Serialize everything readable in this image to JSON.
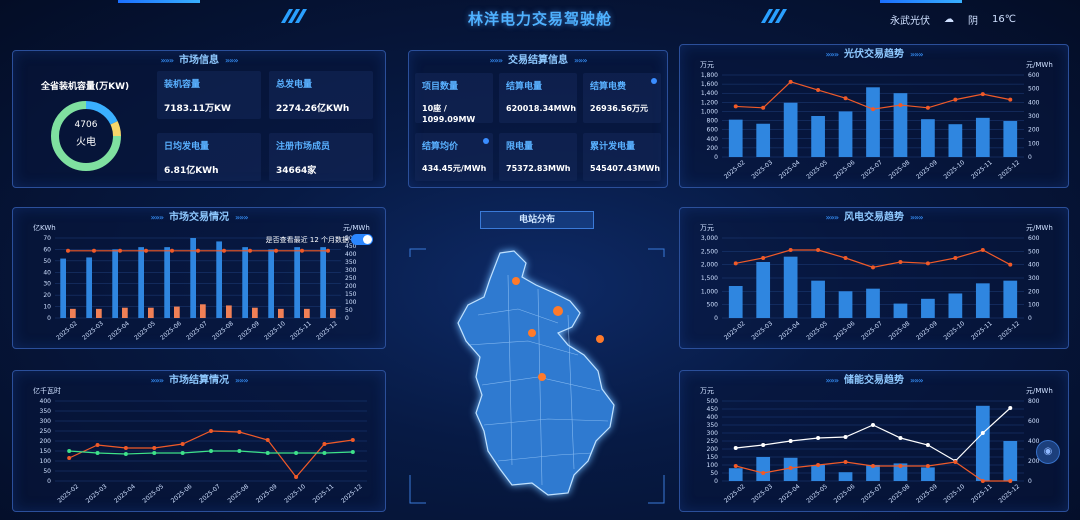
{
  "header": {
    "title": "林洋电力交易驾驶舱",
    "location": "永武光伏",
    "weather_text": "阴",
    "temperature": "16℃"
  },
  "market_info": {
    "title": "市场信息",
    "capacity_label": "全省装机容量(万KW)",
    "donut": {
      "value": "4706",
      "label": "火电",
      "segments": [
        0.18,
        0.07,
        0.75
      ],
      "colors": [
        "#3ab0ff",
        "#f7d66a",
        "#7fe0a0"
      ]
    },
    "cards": [
      {
        "label": "装机容量",
        "value": "7183.11万KW"
      },
      {
        "label": "总发电量",
        "value": "2274.26亿KWh"
      },
      {
        "label": "日均发电量",
        "value": "6.81亿KWh"
      },
      {
        "label": "注册市场成员",
        "value": "34664家"
      }
    ]
  },
  "trade_settlement": {
    "title": "交易结算信息",
    "cards": [
      {
        "label": "项目数量",
        "value": "10座 / 1099.09MW"
      },
      {
        "label": "结算电量",
        "value": "620018.34MWh"
      },
      {
        "label": "结算电费",
        "value": "26936.56万元"
      },
      {
        "label": "结算均价",
        "value": "434.45元/MWh"
      },
      {
        "label": "限电量",
        "value": "75372.83MWh"
      },
      {
        "label": "累计发电量",
        "value": "545407.43MWh"
      }
    ]
  },
  "map": {
    "title": "电站分布"
  },
  "chart_data": [
    {
      "id": "pv",
      "type": "bar",
      "title": "光伏交易趋势",
      "categories": [
        "2025-02",
        "2025-03",
        "2025-04",
        "2025-05",
        "2025-06",
        "2025-07",
        "2025-08",
        "2025-09",
        "2025-10",
        "2025-11",
        "2025-12"
      ],
      "left_unit": "万元",
      "right_unit": "元/MWh",
      "left_ticks": [
        "0",
        "200",
        "400",
        "600",
        "800",
        "1,000",
        "1,200",
        "1,400",
        "1,600",
        "1,800"
      ],
      "ylim": [
        0,
        1800
      ],
      "right_ticks": [
        "0",
        "100",
        "200",
        "300",
        "400",
        "500",
        "600"
      ],
      "y2lim": [
        0,
        600
      ],
      "series": [
        {
          "kind": "bar",
          "axis": "left",
          "values": [
            820,
            730,
            1190,
            900,
            1000,
            1530,
            1400,
            830,
            720,
            860,
            790
          ]
        },
        {
          "kind": "line",
          "axis": "right",
          "values": [
            370,
            360,
            550,
            490,
            430,
            350,
            380,
            360,
            420,
            460,
            420
          ]
        }
      ]
    },
    {
      "id": "market_trade",
      "type": "bar",
      "title": "市场交易情况",
      "toggle_label": "是否查看最近 12 个月数据",
      "categories": [
        "2025-02",
        "2025-03",
        "2025-04",
        "2025-05",
        "2025-06",
        "2025-07",
        "2025-08",
        "2025-09",
        "2025-10",
        "2025-11",
        "2025-12"
      ],
      "left_unit": "亿KWh",
      "right_unit": "元/MWh",
      "left_ticks": [
        "0",
        "10",
        "20",
        "30",
        "40",
        "50",
        "60",
        "70"
      ],
      "ylim": [
        0,
        70
      ],
      "right_ticks": [
        "0",
        "50",
        "100",
        "150",
        "200",
        "250",
        "300",
        "350",
        "400",
        "450",
        "500"
      ],
      "y2lim": [
        0,
        500
      ],
      "series": [
        {
          "kind": "bar",
          "axis": "left",
          "values": [
            52,
            53,
            60,
            62,
            62,
            70,
            67,
            62,
            60,
            62,
            62
          ],
          "color": "#2f86e0"
        },
        {
          "kind": "bar",
          "axis": "left",
          "values": [
            8,
            8,
            9,
            9,
            10,
            12,
            11,
            9,
            8,
            8,
            8
          ],
          "color": "#f08056"
        },
        {
          "kind": "line",
          "axis": "right",
          "values": [
            420,
            420,
            420,
            420,
            420,
            420,
            420,
            420,
            420,
            420,
            420
          ],
          "color": "#f05a28"
        }
      ]
    },
    {
      "id": "wind",
      "type": "bar",
      "title": "风电交易趋势",
      "categories": [
        "2025-02",
        "2025-03",
        "2025-04",
        "2025-05",
        "2025-06",
        "2025-07",
        "2025-08",
        "2025-09",
        "2025-10",
        "2025-11",
        "2025-12"
      ],
      "left_unit": "万元",
      "right_unit": "元/MWh",
      "left_ticks": [
        "0",
        "500",
        "1,000",
        "1,500",
        "2,000",
        "2,500",
        "3,000"
      ],
      "ylim": [
        0,
        3000
      ],
      "right_ticks": [
        "0",
        "100",
        "200",
        "300",
        "400",
        "500",
        "600"
      ],
      "y2lim": [
        0,
        600
      ],
      "series": [
        {
          "kind": "bar",
          "axis": "left",
          "values": [
            1200,
            2100,
            2300,
            1400,
            1000,
            1100,
            540,
            720,
            920,
            1300,
            1400
          ]
        },
        {
          "kind": "line",
          "axis": "right",
          "values": [
            410,
            450,
            510,
            510,
            450,
            380,
            420,
            410,
            450,
            510,
            400
          ]
        }
      ]
    },
    {
      "id": "settlement",
      "type": "line",
      "title": "市场结算情况",
      "categories": [
        "2025-02",
        "2025-03",
        "2025-04",
        "2025-05",
        "2025-06",
        "2025-07",
        "2025-08",
        "2025-09",
        "2025-10",
        "2025-11",
        "2025-12"
      ],
      "left_unit": "亿千瓦时",
      "left_ticks": [
        "0",
        "50",
        "100",
        "150",
        "200",
        "250",
        "300",
        "350",
        "400"
      ],
      "ylim": [
        0,
        400
      ],
      "series": [
        {
          "kind": "line",
          "axis": "left",
          "values": [
            115,
            180,
            165,
            165,
            185,
            250,
            245,
            205,
            20,
            185,
            205
          ],
          "color": "#f05a28"
        },
        {
          "kind": "line",
          "axis": "left",
          "values": [
            150,
            140,
            135,
            140,
            140,
            150,
            150,
            140,
            140,
            140,
            145
          ],
          "color": "#3ee28a"
        }
      ]
    },
    {
      "id": "storage",
      "type": "bar",
      "title": "储能交易趋势",
      "categories": [
        "2025-02",
        "2025-03",
        "2025-04",
        "2025-05",
        "2025-06",
        "2025-07",
        "2025-08",
        "2025-09",
        "2025-10",
        "2025-11",
        "2025-12"
      ],
      "left_unit": "万元",
      "right_unit": "元/MWh",
      "left_ticks": [
        "0",
        "50",
        "100",
        "150",
        "200",
        "250",
        "300",
        "350",
        "400",
        "450",
        "500"
      ],
      "ylim": [
        0,
        500
      ],
      "right_ticks": [
        "0",
        "200",
        "400",
        "600",
        "800"
      ],
      "y2lim": [
        0,
        800
      ],
      "series": [
        {
          "kind": "bar",
          "axis": "left",
          "values": [
            80,
            150,
            145,
            100,
            55,
            100,
            110,
            85,
            0,
            470,
            250
          ]
        },
        {
          "kind": "line",
          "axis": "right",
          "values": [
            330,
            360,
            400,
            430,
            440,
            560,
            430,
            360,
            200,
            480,
            730
          ],
          "color": "#ffffff"
        },
        {
          "kind": "line",
          "axis": "right",
          "values": [
            150,
            80,
            130,
            160,
            190,
            150,
            150,
            150,
            190,
            0,
            0
          ],
          "color": "#f05a28"
        }
      ]
    }
  ]
}
